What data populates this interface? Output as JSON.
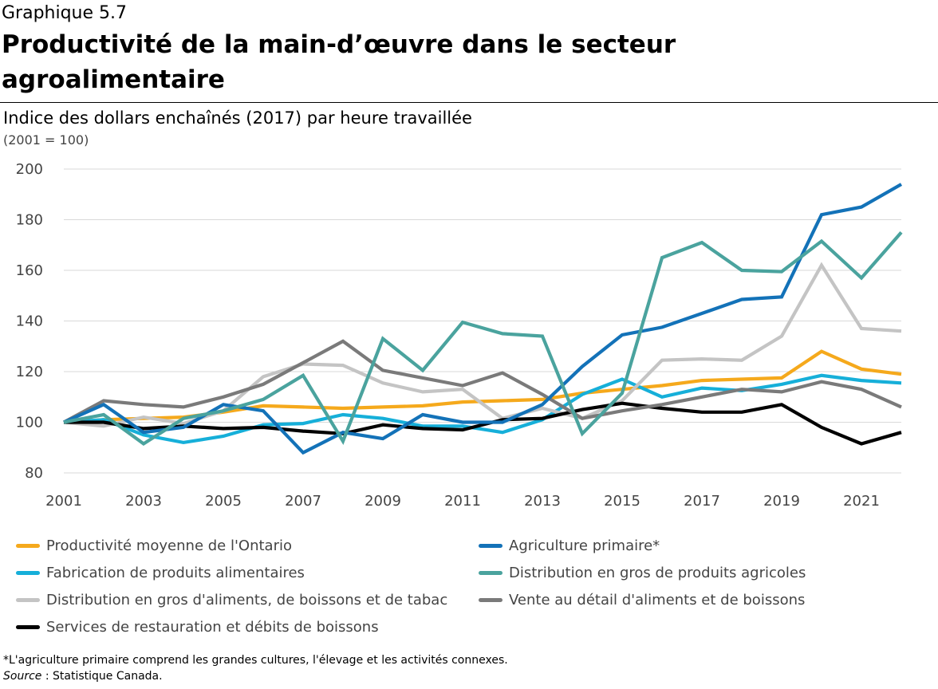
{
  "header": {
    "kicker": "Graphique 5.7",
    "title": "Productivité de la main-d’œuvre dans le secteur agroalimentaire",
    "subtitle": "Indice des dollars enchaînés (2017) par heure travaillée",
    "note": "(2001 = 100)"
  },
  "chart_data": {
    "type": "line",
    "title": "Productivité de la main-d’œuvre dans le secteur agroalimentaire",
    "xlabel": "",
    "ylabel": "Indice des dollars enchaînés (2017) par heure travaillée",
    "x": [
      2001,
      2002,
      2003,
      2004,
      2005,
      2006,
      2007,
      2008,
      2009,
      2010,
      2011,
      2012,
      2013,
      2014,
      2015,
      2016,
      2017,
      2018,
      2019,
      2020,
      2021,
      2022
    ],
    "xticks": [
      "2001",
      "2003",
      "2005",
      "2007",
      "2009",
      "2011",
      "2013",
      "2015",
      "2017",
      "2019",
      "2021"
    ],
    "xlim": [
      2001,
      2022
    ],
    "yticks": [
      "80",
      "100",
      "120",
      "140",
      "160",
      "180",
      "200"
    ],
    "ylim": [
      80,
      200
    ],
    "grid": true,
    "series": [
      {
        "name": "Productivité moyenne de l'Ontario",
        "color": "#f5a91c",
        "values": [
          100,
          101,
          101.5,
          102,
          104,
          106.5,
          106,
          105.5,
          106,
          106.5,
          108,
          108.5,
          109,
          111.5,
          113,
          114.5,
          116.5,
          117,
          117.5,
          128,
          121,
          119
        ]
      },
      {
        "name": "Agriculture primaire*",
        "color": "#1372b8",
        "values": [
          100,
          107,
          96,
          98,
          107,
          104.5,
          88,
          96,
          93.5,
          103,
          100,
          100,
          107,
          122,
          134.5,
          137.5,
          143,
          148.5,
          149.5,
          182,
          185,
          194
        ]
      },
      {
        "name": "Fabrication de produits alimentaires",
        "color": "#16afd9",
        "values": [
          100,
          101,
          95,
          92,
          94.5,
          99,
          99.5,
          103,
          101.5,
          98.5,
          98.5,
          96,
          101,
          111,
          117,
          110,
          113.5,
          112.5,
          115,
          118.5,
          116.5,
          115.5
        ]
      },
      {
        "name": "Distribution en gros de produits agricoles",
        "color": "#4aa39e",
        "values": [
          100,
          103,
          91.5,
          101.5,
          104.5,
          109,
          118.5,
          92.5,
          133,
          120.5,
          139.5,
          135,
          134,
          95.5,
          111.5,
          165,
          171,
          160,
          159.5,
          171.5,
          157,
          175
        ]
      },
      {
        "name": "Distribution en gros d'aliments, de boissons et de tabac",
        "color": "#c4c4c4",
        "values": [
          100,
          98.5,
          102,
          99.5,
          104.5,
          118,
          123,
          122.5,
          115.5,
          112,
          113,
          101.5,
          105.5,
          101.5,
          108.5,
          124.5,
          125,
          124.5,
          134,
          162,
          137,
          136
        ]
      },
      {
        "name": "Vente au détail d'aliments et de boissons",
        "color": "#7a7a7a",
        "values": [
          100,
          108.5,
          107,
          106,
          110,
          115,
          123.5,
          132,
          120.5,
          117.5,
          114.5,
          119.5,
          111,
          101.5,
          104.5,
          107,
          110,
          113,
          112,
          116,
          113,
          106
        ]
      },
      {
        "name": "Services de restauration et débits de boissons",
        "color": "#000000",
        "values": [
          100,
          100,
          97.5,
          98.5,
          97.5,
          98,
          96.5,
          95.5,
          99,
          97.5,
          97,
          101,
          101.5,
          105,
          107.5,
          105.5,
          104,
          104,
          107,
          98,
          91.5,
          96
        ]
      }
    ]
  },
  "footnote": "*L'agriculture primaire comprend les grandes cultures, l'élevage et les activités connexes.",
  "source": {
    "label": "Source",
    "text": " : Statistique Canada."
  }
}
